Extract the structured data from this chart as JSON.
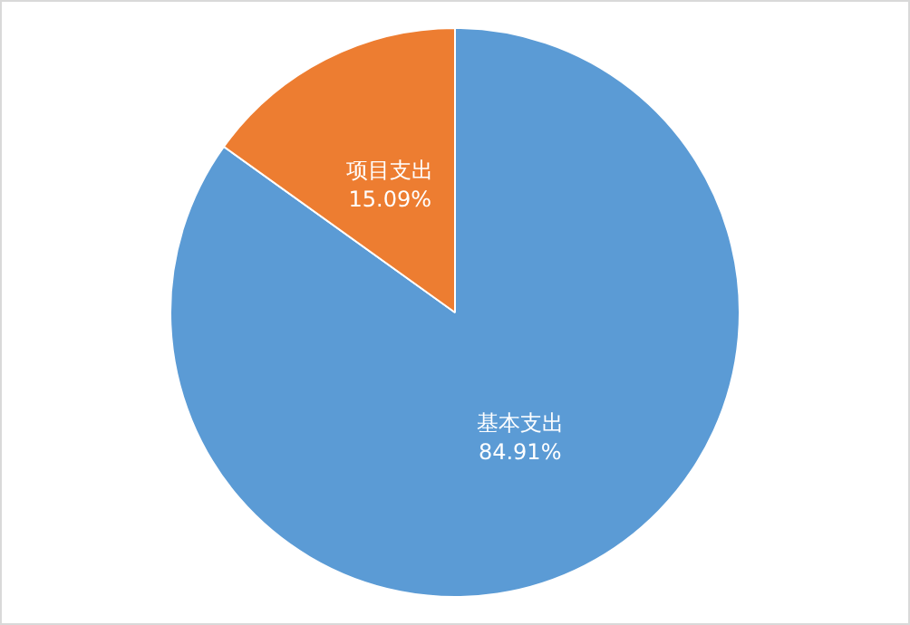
{
  "chart_data": {
    "type": "pie",
    "categories": [
      "基本支出",
      "项目支出"
    ],
    "values": [
      84.91,
      15.09
    ],
    "value_labels": [
      "84.91%",
      "15.09%"
    ],
    "colors": [
      "#5b9bd5",
      "#ed7d31"
    ],
    "legend": false
  }
}
